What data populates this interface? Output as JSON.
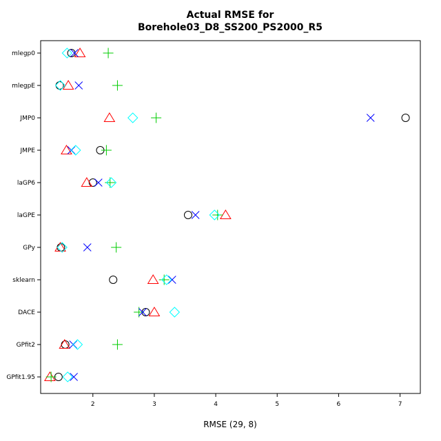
{
  "chart_data": {
    "type": "scatter",
    "title_lines": [
      "Actual RMSE for",
      "Borehole03_D8_SS200_PS2000_R5"
    ],
    "xlabel": "RMSE (29, 8)",
    "ylabel": "",
    "xlim": [
      1.15,
      7.33
    ],
    "xticks": [
      2,
      3,
      4,
      5,
      6,
      7
    ],
    "grid": false,
    "legend": "none",
    "categories": [
      "mlegp0",
      "mlegpE",
      "JMP0",
      "JMPE",
      "laGP6",
      "laGPE",
      "GPy",
      "sklearn",
      "DACE",
      "GPfit2",
      "GPfit1.95"
    ],
    "series": [
      {
        "marker": "circle",
        "color": "#000000",
        "values": [
          1.65,
          1.46,
          7.09,
          2.12,
          2.0,
          3.55,
          1.48,
          2.33,
          2.86,
          1.55,
          1.44
        ]
      },
      {
        "marker": "triangle",
        "color": "#FF0000",
        "values": [
          1.79,
          1.6,
          2.27,
          1.57,
          1.9,
          4.16,
          1.47,
          2.98,
          3.0,
          1.54,
          1.3
        ]
      },
      {
        "marker": "plus",
        "color": "#00CC00",
        "values": [
          2.25,
          2.4,
          3.03,
          2.22,
          2.28,
          4.03,
          2.38,
          3.16,
          2.75,
          2.4,
          1.32
        ]
      },
      {
        "marker": "cross",
        "color": "#0000FF",
        "values": [
          1.7,
          1.77,
          6.52,
          1.65,
          2.09,
          3.67,
          1.91,
          3.29,
          2.81,
          1.68,
          1.69
        ]
      },
      {
        "marker": "diamond",
        "color": "#00FFFF",
        "values": [
          1.58,
          1.47,
          2.65,
          1.72,
          2.3,
          3.98,
          1.5,
          3.2,
          3.33,
          1.75,
          1.59
        ]
      }
    ]
  }
}
